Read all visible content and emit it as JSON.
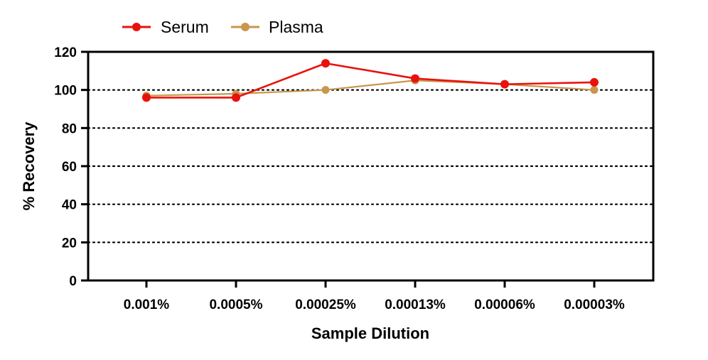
{
  "chart_data": {
    "type": "line",
    "title": "",
    "xlabel": "Sample Dilution",
    "ylabel": "% Recovery",
    "categories": [
      "0.001%",
      "0.0005%",
      "0.00025%",
      "0.00013%",
      "0.00006%",
      "0.00003%"
    ],
    "ylim": [
      0,
      120
    ],
    "yticks": [
      "0",
      "20",
      "40",
      "60",
      "80",
      "100",
      "120"
    ],
    "grid": "horizontal dotted",
    "legend_position": "top-left",
    "series": [
      {
        "name": "Serum",
        "color": "#e8120c",
        "values": [
          96,
          96,
          114,
          106,
          103,
          104
        ]
      },
      {
        "name": "Plasma",
        "color": "#c8964d",
        "values": [
          97,
          98,
          100,
          105,
          103,
          100
        ]
      }
    ]
  }
}
